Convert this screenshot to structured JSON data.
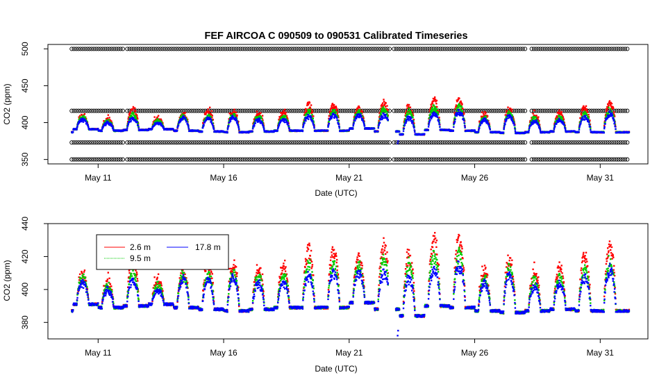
{
  "title": "FEF   AIRCOA  C    090509  to  090531   Calibrated Timeseries",
  "chart_data": [
    {
      "type": "scatter",
      "title": "FEF   AIRCOA  C    090509  to  090531   Calibrated Timeseries",
      "xlabel": "Date (UTC)",
      "ylabel": "CO2 (ppm)",
      "xlim": [
        9.0,
        32.9
      ],
      "ylim": [
        344,
        506
      ],
      "x_ticks": [
        {
          "label": "May 11",
          "value": 11
        },
        {
          "label": "May 16",
          "value": 16
        },
        {
          "label": "May 21",
          "value": 21
        },
        {
          "label": "May 26",
          "value": 26
        },
        {
          "label": "May 31",
          "value": 31
        }
      ],
      "y_ticks": [
        350,
        400,
        450,
        500
      ],
      "reference_levels": {
        "values": [
          350,
          373,
          416,
          500
        ],
        "x_start": 9.95,
        "x_end": 32.1,
        "gaps": [
          12.05,
          22.7,
          28.15
        ],
        "marker": "open-circle",
        "color": "#000000"
      },
      "series": [
        {
          "name": "2.6 m",
          "color": "#ff0000"
        },
        {
          "name": "9.5 m",
          "color": "#00cc00"
        },
        {
          "name": "17.8 m",
          "color": "#0000ff"
        }
      ]
    },
    {
      "type": "scatter",
      "xlabel": "Date (UTC)",
      "ylabel": "CO2 (ppm)",
      "xlim": [
        9.0,
        32.9
      ],
      "ylim": [
        370,
        440
      ],
      "x_ticks": [
        {
          "label": "May 11",
          "value": 11
        },
        {
          "label": "May 16",
          "value": 16
        },
        {
          "label": "May 21",
          "value": 21
        },
        {
          "label": "May 26",
          "value": 26
        },
        {
          "label": "May 31",
          "value": 31
        }
      ],
      "y_ticks": [
        380,
        400,
        420,
        440
      ],
      "legend": {
        "placement": "top-left",
        "entries": [
          {
            "label": "2.6 m",
            "color": "#ff0000"
          },
          {
            "label": "9.5 m",
            "color": "#00cc00"
          },
          {
            "label": "17.8 m",
            "color": "#0000ff"
          }
        ]
      },
      "series": [
        {
          "name": "2.6 m",
          "color": "#ff0000"
        },
        {
          "name": "9.5 m",
          "color": "#00cc00"
        },
        {
          "name": "17.8 m",
          "color": "#0000ff"
        }
      ]
    }
  ],
  "daily_profile": {
    "description": "Daily CO2 cycle: nighttime baseline and daytime peak per day (ppm), per inlet height",
    "x_start": 9.95,
    "x_end": 32.15,
    "gap_dates": [
      [
        22.55,
        22.85
      ]
    ],
    "days": [
      {
        "day": 10,
        "base": 391,
        "peak": [
          410,
          409,
          406
        ]
      },
      {
        "day": 11,
        "base": 389,
        "peak": [
          406,
          404,
          401
        ]
      },
      {
        "day": 12,
        "base": 390,
        "peak": [
          420,
          413,
          408
        ]
      },
      {
        "day": 13,
        "base": 391,
        "peak": [
          407,
          404,
          400
        ]
      },
      {
        "day": 14,
        "base": 389,
        "peak": [
          412,
          411,
          408
        ]
      },
      {
        "day": 15,
        "base": 388,
        "peak": [
          419,
          412,
          408
        ]
      },
      {
        "day": 16,
        "base": 387,
        "peak": [
          416,
          413,
          410
        ]
      },
      {
        "day": 17,
        "base": 388,
        "peak": [
          414,
          411,
          406
        ]
      },
      {
        "day": 18,
        "base": 389,
        "peak": [
          416,
          411,
          406
        ]
      },
      {
        "day": 19,
        "base": 389,
        "peak": [
          428,
          418,
          411
        ]
      },
      {
        "day": 20,
        "base": 389,
        "peak": [
          428,
          419,
          413
        ]
      },
      {
        "day": 21,
        "base": 392,
        "peak": [
          423,
          417,
          412
        ]
      },
      {
        "day": 22,
        "base": 388,
        "peak": [
          431,
          422,
          413
        ]
      },
      {
        "day": 23,
        "base": 384,
        "peak": [
          425,
          418,
          410
        ]
      },
      {
        "day": 24,
        "base": 390,
        "peak": [
          435,
          425,
          415
        ]
      },
      {
        "day": 25,
        "base": 389,
        "peak": [
          436,
          426,
          418
        ]
      },
      {
        "day": 26,
        "base": 387,
        "peak": [
          414,
          409,
          406
        ]
      },
      {
        "day": 27,
        "base": 386,
        "peak": [
          421,
          416,
          412
        ]
      },
      {
        "day": 28,
        "base": 387,
        "peak": [
          413,
          408,
          404
        ]
      },
      {
        "day": 29,
        "base": 388,
        "peak": [
          416,
          410,
          405
        ]
      },
      {
        "day": 30,
        "base": 387,
        "peak": [
          425,
          415,
          410
        ]
      },
      {
        "day": 31,
        "base": 387,
        "peak": [
          432,
          421,
          415
        ]
      }
    ]
  }
}
